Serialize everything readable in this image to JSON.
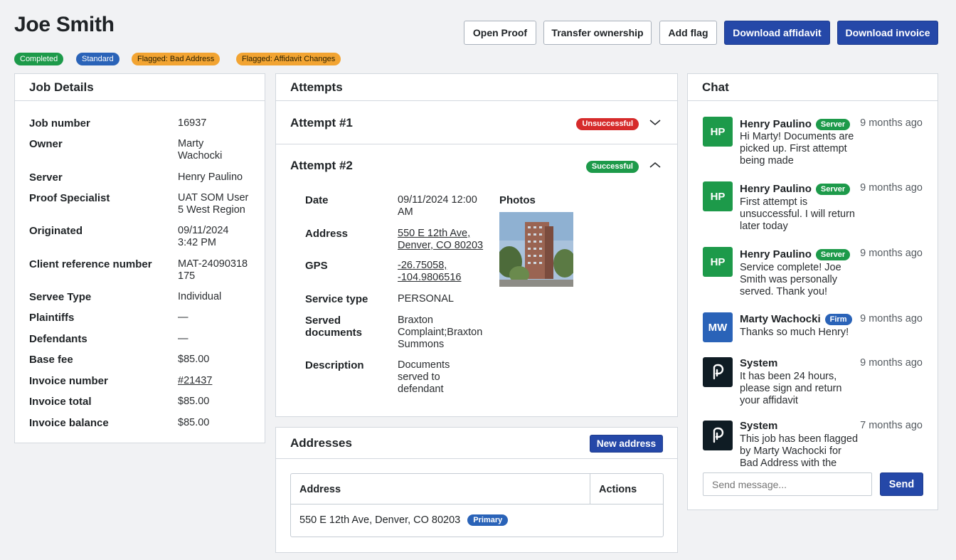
{
  "header": {
    "title": "Joe Smith",
    "buttons": {
      "open_proof": "Open Proof",
      "transfer": "Transfer ownership",
      "add_flag": "Add flag",
      "download_affidavit": "Download affidavit",
      "download_invoice": "Download invoice"
    },
    "badges": [
      "Completed",
      "Standard",
      "Flagged: Bad Address",
      "Flagged: Affidavit Changes"
    ]
  },
  "job_details": {
    "title": "Job Details",
    "rows": [
      {
        "label": "Job number",
        "value": "16937"
      },
      {
        "label": "Owner",
        "value": "Marty Wachocki"
      },
      {
        "label": "Server",
        "value": "Henry Paulino"
      },
      {
        "label": "Proof Specialist",
        "value": "UAT SOM User 5 West Region"
      },
      {
        "label": "Originated",
        "value": "09/11/2024 3:42 PM"
      },
      {
        "label": "Client reference number",
        "value": "MAT-24090318175"
      },
      {
        "label": "Servee Type",
        "value": "Individual"
      },
      {
        "label": "Plaintiffs",
        "value": "—"
      },
      {
        "label": "Defendants",
        "value": "—"
      },
      {
        "label": "Base fee",
        "value": "$85.00"
      },
      {
        "label": "Invoice number",
        "value": "#21437"
      },
      {
        "label": "Invoice total",
        "value": "$85.00"
      },
      {
        "label": "Invoice balance",
        "value": "$85.00"
      }
    ]
  },
  "attempts": {
    "title": "Attempts",
    "items": [
      {
        "title": "Attempt #1",
        "status": "Unsuccessful",
        "status_color": "#d62b2b",
        "expanded": false
      },
      {
        "title": "Attempt #2",
        "status": "Successful",
        "status_color": "#1d9a4a",
        "expanded": true
      }
    ],
    "detail": {
      "date_label": "Date",
      "date": "09/11/2024 12:00 AM",
      "address_label": "Address",
      "address": "550 E 12th Ave, Denver, CO 80203",
      "gps_label": "GPS",
      "gps": "-26.75058, -104.9806516",
      "service_type_label": "Service type",
      "service_type": "PERSONAL",
      "served_docs_label": "Served documents",
      "served_docs": "Braxton Complaint;Braxton Summons",
      "description_label": "Description",
      "description": "Documents served to defendant",
      "photos_label": "Photos"
    }
  },
  "addresses": {
    "title": "Addresses",
    "new_button": "New address",
    "columns": [
      "Address",
      "Actions"
    ],
    "rows": [
      {
        "address": "550 E 12th Ave, Denver, CO 80203",
        "tag": "Primary"
      }
    ]
  },
  "chat": {
    "title": "Chat",
    "messages": [
      {
        "initials": "HP",
        "name": "Henry Paulino",
        "role": "Server",
        "time": "9 months ago",
        "text": "Hi Marty! Documents are picked up. First attempt being made"
      },
      {
        "initials": "HP",
        "name": "Henry Paulino",
        "role": "Server",
        "time": "9 months ago",
        "text": "First attempt is unsuccessful. I will return later today"
      },
      {
        "initials": "HP",
        "name": "Henry Paulino",
        "role": "Server",
        "time": "9 months ago",
        "text": "Service complete! Joe Smith was personally served. Thank you!"
      },
      {
        "initials": "MW",
        "name": "Marty Wachocki",
        "role": "Firm",
        "time": "9 months ago",
        "text": "Thanks so much Henry!"
      },
      {
        "initials": "",
        "name": "System",
        "role": "",
        "time": "9 months ago",
        "text": "It has been 24 hours, please sign and return your affidavit"
      },
      {
        "initials": "",
        "name": "System",
        "role": "",
        "time": "7 months ago",
        "text": "This job has been flagged by Marty Wachocki for Bad Address with the"
      }
    ],
    "input_placeholder": "Send message...",
    "send_label": "Send"
  }
}
